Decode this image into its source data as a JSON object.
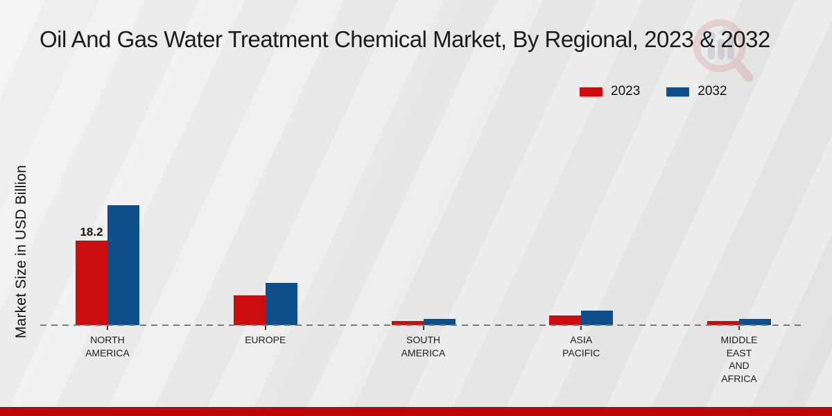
{
  "page": {
    "title": "Oil And Gas Water Treatment Chemical Market, By Regional, 2023 & 2032"
  },
  "legend": {
    "items": [
      {
        "label": "2023",
        "color": "#cb0d0e"
      },
      {
        "label": "2032",
        "color": "#0e4e8b"
      }
    ]
  },
  "chart_data": {
    "type": "bar",
    "title": "Oil And Gas Water Treatment Chemical Market, By Regional, 2023 & 2032",
    "xlabel": "",
    "ylabel": "Market Size in USD Billion",
    "categories": [
      "NORTH AMERICA",
      "EUROPE",
      "SOUTH AMERICA",
      "ASIA PACIFIC",
      "MIDDLE EAST AND AFRICA"
    ],
    "category_lines": [
      [
        "NORTH",
        "AMERICA"
      ],
      [
        "EUROPE"
      ],
      [
        "SOUTH",
        "AMERICA"
      ],
      [
        "ASIA",
        "PACIFIC"
      ],
      [
        "MIDDLE",
        "EAST",
        "AND",
        "AFRICA"
      ]
    ],
    "series": [
      {
        "name": "2023",
        "color": "#cb0d0e",
        "values": [
          18.2,
          6.4,
          0.9,
          2.1,
          0.9
        ]
      },
      {
        "name": "2032",
        "color": "#0e4e8b",
        "values": [
          25.8,
          9.1,
          1.4,
          3.1,
          1.4
        ]
      }
    ],
    "data_labels": [
      {
        "category_index": 0,
        "series_index": 0,
        "text": "18.2"
      }
    ],
    "ylim": [
      0,
      27
    ],
    "grid": false,
    "baseline_style": "dashed",
    "legend_position": "top-right"
  },
  "footer": {
    "color": "#bd0606"
  }
}
